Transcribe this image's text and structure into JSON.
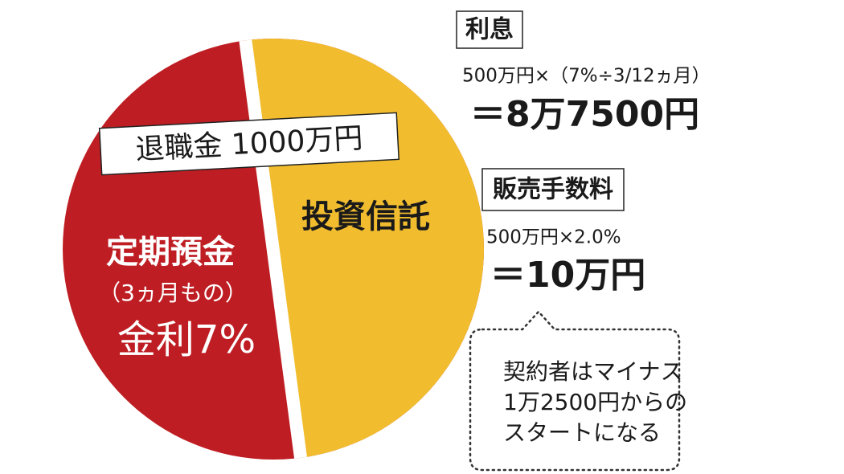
{
  "pie": {
    "label": "退職金 1000万円",
    "left": {
      "title": "定期預金",
      "sub": "（3ヵ月もの）",
      "rate": "金利7%"
    },
    "right": {
      "title": "投資信託"
    }
  },
  "interest": {
    "heading": "利息",
    "formula": "500万円×（7%÷3/12ヵ月）",
    "result": "＝8万7500円"
  },
  "fee": {
    "heading": "販売手数料",
    "formula": "500万円×2.0%",
    "result": "＝10万円"
  },
  "note": {
    "lines": [
      "契約者はマイナス",
      "1万2500円からの",
      "スタートになる"
    ]
  }
}
